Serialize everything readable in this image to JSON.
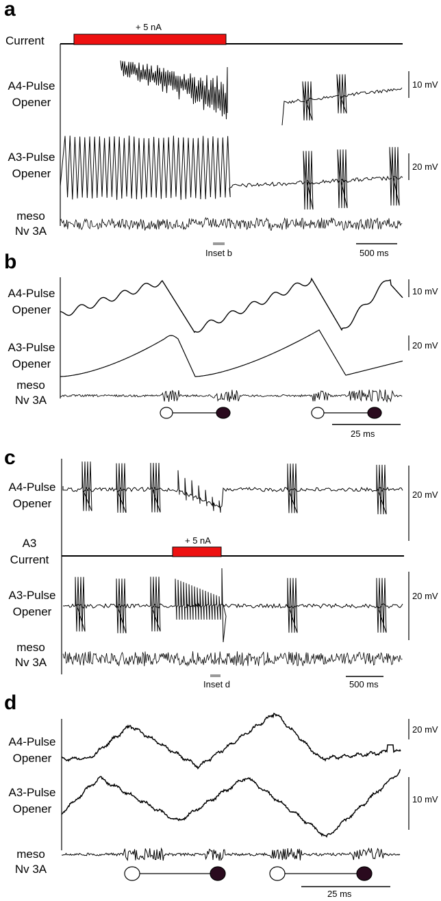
{
  "panels": {
    "a": {
      "letter": "a",
      "current_label": "Current",
      "stim_label": "+ 5 nA",
      "trace1": [
        "A4-Pulse",
        "Opener"
      ],
      "trace2": [
        "A3-Pulse",
        "Opener"
      ],
      "trace3": [
        "meso",
        "Nv 3A"
      ],
      "scale1": "10 mV",
      "scale2": "20 mV",
      "inset": "Inset b",
      "time": "500 ms"
    },
    "b": {
      "letter": "b",
      "trace1": [
        "A4-Pulse",
        "Opener"
      ],
      "trace2": [
        "A3-Pulse",
        "Opener"
      ],
      "trace3": [
        "meso",
        "Nv 3A"
      ],
      "scale1": "10 mV",
      "scale2": "20 mV",
      "time": "25 ms"
    },
    "c": {
      "letter": "c",
      "trace1": [
        "A4-Pulse",
        "Opener"
      ],
      "current_label": [
        "A3",
        "Current"
      ],
      "stim_label": "+ 5 nA",
      "trace2": [
        "A3-Pulse",
        "Opener"
      ],
      "trace3": [
        "meso",
        "Nv 3A"
      ],
      "scale1": "20 mV",
      "scale2": "20 mV",
      "inset": "Inset d",
      "time": "500 ms"
    },
    "d": {
      "letter": "d",
      "trace1": [
        "A4-Pulse",
        "Opener"
      ],
      "trace2": [
        "A3-Pulse",
        "Opener"
      ],
      "trace3": [
        "meso",
        "Nv 3A"
      ],
      "scale1": "20 mV",
      "scale2": "10 mV",
      "time": "25 ms"
    }
  },
  "colors": {
    "stim": "#ee1111",
    "trace": "#000000",
    "inset_marker": "#999999",
    "filled_dot": "#2a0a1e"
  }
}
